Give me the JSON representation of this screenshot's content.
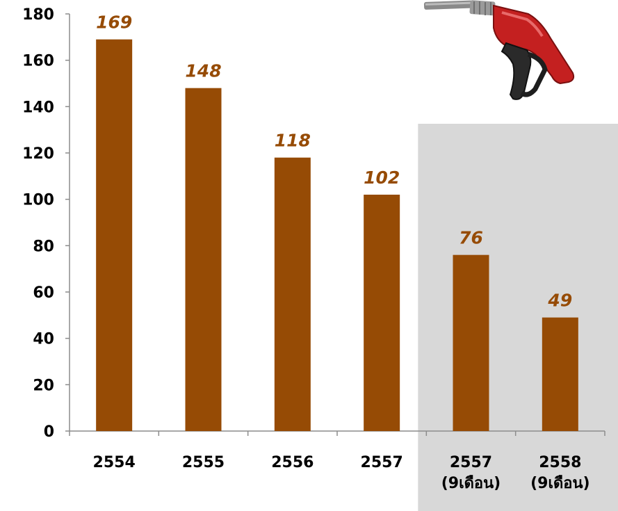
{
  "chart_data": {
    "type": "bar",
    "categories": [
      [
        "2554"
      ],
      [
        "2555"
      ],
      [
        "2556"
      ],
      [
        "2557"
      ],
      [
        "2557",
        "(9เดือน)"
      ],
      [
        "2558",
        "(9เดือน)"
      ]
    ],
    "values": [
      169,
      148,
      118,
      102,
      76,
      49
    ],
    "data_labels": [
      "169",
      "148",
      "118",
      "102",
      "76",
      "49"
    ],
    "ylim": [
      0,
      180
    ],
    "yticks": [
      0,
      20,
      40,
      60,
      80,
      100,
      120,
      140,
      160,
      180
    ],
    "highlighted_categories": [
      4,
      5
    ],
    "grid": false,
    "bar_color": "#964B05",
    "label_color": "#964B05",
    "highlight_color": "#D8D8D8",
    "axis_color": "#8C8C8C"
  },
  "decoration": {
    "icon": "fuel-nozzle-icon"
  }
}
